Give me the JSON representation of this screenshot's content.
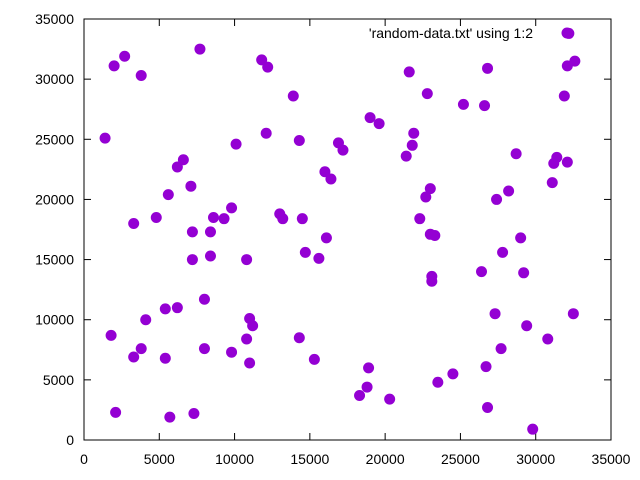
{
  "chart_data": {
    "type": "scatter",
    "title": "",
    "xlabel": "",
    "ylabel": "",
    "xlim": [
      0,
      35000
    ],
    "ylim": [
      0,
      35000
    ],
    "xticks": [
      "0",
      "5000",
      "10000",
      "15000",
      "20000",
      "25000",
      "30000",
      "35000"
    ],
    "yticks": [
      "0",
      "5000",
      "10000",
      "15000",
      "20000",
      "25000",
      "30000",
      "35000"
    ],
    "xtick_values": [
      0,
      5000,
      10000,
      15000,
      20000,
      25000,
      30000,
      35000
    ],
    "ytick_values": [
      0,
      5000,
      10000,
      15000,
      20000,
      25000,
      30000,
      35000
    ],
    "grid": false,
    "legend_position": "top-right",
    "series": [
      {
        "name": "'random-data.txt' using 1:2",
        "color": "#9400d3",
        "points": [
          [
            1400,
            25100
          ],
          [
            2000,
            31100
          ],
          [
            2700,
            31900
          ],
          [
            3800,
            30300
          ],
          [
            7700,
            32500
          ],
          [
            1800,
            8700
          ],
          [
            2100,
            2300
          ],
          [
            3300,
            18000
          ],
          [
            3300,
            6900
          ],
          [
            3800,
            7600
          ],
          [
            4100,
            10000
          ],
          [
            4800,
            18500
          ],
          [
            5400,
            10900
          ],
          [
            5400,
            6800
          ],
          [
            5600,
            20400
          ],
          [
            5700,
            1900
          ],
          [
            6200,
            22700
          ],
          [
            6200,
            11000
          ],
          [
            6600,
            23300
          ],
          [
            7100,
            21100
          ],
          [
            7200,
            17300
          ],
          [
            7200,
            15000
          ],
          [
            7300,
            2200
          ],
          [
            8000,
            11700
          ],
          [
            8000,
            7600
          ],
          [
            8400,
            17300
          ],
          [
            8400,
            15300
          ],
          [
            8600,
            18500
          ],
          [
            9300,
            18400
          ],
          [
            9800,
            19300
          ],
          [
            9800,
            7300
          ],
          [
            10100,
            24600
          ],
          [
            10800,
            15000
          ],
          [
            10800,
            8400
          ],
          [
            11000,
            10100
          ],
          [
            11000,
            6400
          ],
          [
            11200,
            9500
          ],
          [
            11800,
            31600
          ],
          [
            12200,
            31000
          ],
          [
            12100,
            25500
          ],
          [
            13000,
            18800
          ],
          [
            13200,
            18400
          ],
          [
            13900,
            28600
          ],
          [
            14300,
            24900
          ],
          [
            14300,
            8500
          ],
          [
            14500,
            18400
          ],
          [
            14700,
            15600
          ],
          [
            15300,
            6700
          ],
          [
            15600,
            15100
          ],
          [
            16000,
            22300
          ],
          [
            16100,
            16800
          ],
          [
            16400,
            21700
          ],
          [
            16900,
            24700
          ],
          [
            17200,
            24100
          ],
          [
            18300,
            3700
          ],
          [
            18800,
            4400
          ],
          [
            18900,
            6000
          ],
          [
            19000,
            26800
          ],
          [
            19600,
            26300
          ],
          [
            20300,
            3400
          ],
          [
            21400,
            23600
          ],
          [
            21600,
            30600
          ],
          [
            21800,
            24500
          ],
          [
            21900,
            25500
          ],
          [
            22300,
            18400
          ],
          [
            22700,
            20200
          ],
          [
            22800,
            28800
          ],
          [
            23000,
            20900
          ],
          [
            23000,
            17100
          ],
          [
            23100,
            13600
          ],
          [
            23100,
            13200
          ],
          [
            23300,
            17000
          ],
          [
            23500,
            4800
          ],
          [
            24500,
            5500
          ],
          [
            25200,
            27900
          ],
          [
            26400,
            14000
          ],
          [
            26600,
            27800
          ],
          [
            26700,
            6100
          ],
          [
            26800,
            30900
          ],
          [
            26800,
            2700
          ],
          [
            27300,
            10500
          ],
          [
            27400,
            20000
          ],
          [
            27700,
            7600
          ],
          [
            27800,
            15600
          ],
          [
            28200,
            20700
          ],
          [
            28700,
            23800
          ],
          [
            29000,
            16800
          ],
          [
            29200,
            13900
          ],
          [
            29400,
            9500
          ],
          [
            29800,
            900
          ],
          [
            30800,
            8400
          ],
          [
            31100,
            21400
          ],
          [
            31200,
            23000
          ],
          [
            31400,
            23500
          ],
          [
            31900,
            28600
          ],
          [
            32100,
            23100
          ],
          [
            32100,
            31100
          ],
          [
            32200,
            33800
          ],
          [
            32500,
            10500
          ],
          [
            32600,
            31500
          ]
        ]
      }
    ]
  }
}
